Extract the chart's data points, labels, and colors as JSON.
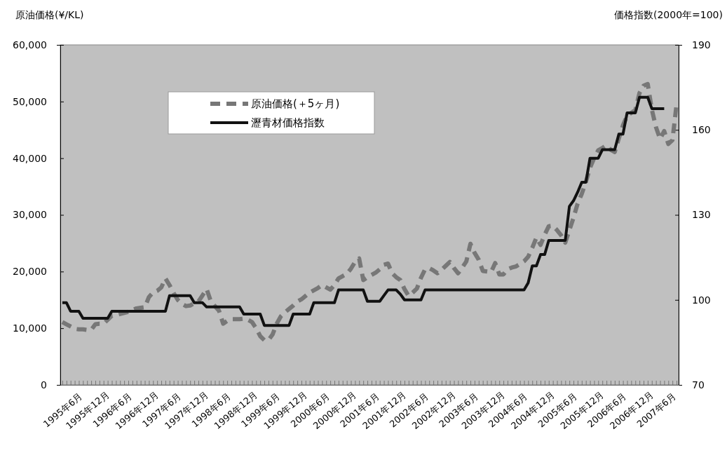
{
  "chart_data": {
    "type": "line",
    "ylabel": "原油価格(¥/KL)",
    "y2label": "価格指数(2000年=100)",
    "categories": [
      "1995年6月",
      null,
      null,
      null,
      null,
      null,
      "1995年12月",
      null,
      null,
      null,
      null,
      null,
      "1996年6月",
      null,
      null,
      null,
      null,
      null,
      "1996年12月",
      null,
      null,
      null,
      null,
      null,
      "1997年6月",
      null,
      null,
      null,
      null,
      null,
      "1997年12月",
      null,
      null,
      null,
      null,
      null,
      "1998年6月",
      null,
      null,
      null,
      null,
      null,
      "1998年12月",
      null,
      null,
      null,
      null,
      null,
      "1999年6月",
      null,
      null,
      null,
      null,
      null,
      "1999年12月",
      null,
      null,
      null,
      null,
      null,
      "2000年6月",
      null,
      null,
      null,
      null,
      null,
      "2000年12月",
      null,
      null,
      null,
      null,
      null,
      "2001年6月",
      null,
      null,
      null,
      null,
      null,
      "2001年12月",
      null,
      null,
      null,
      null,
      null,
      "2002年6月",
      null,
      null,
      null,
      null,
      null,
      "2002年12月",
      null,
      null,
      null,
      null,
      null,
      "2003年6月",
      null,
      null,
      null,
      null,
      null,
      "2003年12月",
      null,
      null,
      null,
      null,
      null,
      "2004年6月",
      null,
      null,
      null,
      null,
      null,
      "2004年12月",
      null,
      null,
      null,
      null,
      null,
      "2005年6月",
      null,
      null,
      null,
      null,
      null,
      "2005年12月",
      null,
      null,
      null,
      null,
      null,
      "2006年6月",
      null,
      null,
      null,
      null,
      null,
      "2006年12月",
      null,
      null,
      null,
      null,
      null,
      "2007年6月",
      null,
      null,
      null,
      null,
      null
    ],
    "series": [
      {
        "name": "原油価格(＋5ヶ月)",
        "color": "#777777",
        "line_style": "dashed",
        "values": [
          11100,
          10700,
          10300,
          9900,
          9800,
          9800,
          9700,
          9700,
          10700,
          10800,
          10800,
          11500,
          12200,
          12300,
          12500,
          12700,
          12900,
          13200,
          13500,
          13600,
          13700,
          15500,
          16300,
          16600,
          17200,
          18800,
          17600,
          16200,
          15000,
          14300,
          13900,
          14000,
          14400,
          14700,
          15800,
          16900,
          14800,
          13900,
          13100,
          10800,
          11300,
          11600,
          11600,
          11600,
          11700,
          11500,
          11100,
          10000,
          8600,
          7900,
          7900,
          8900,
          10800,
          12100,
          12800,
          13400,
          14000,
          14700,
          15100,
          15700,
          16300,
          16700,
          17100,
          17600,
          17200,
          16800,
          17600,
          18800,
          19200,
          19600,
          20500,
          21700,
          22300,
          18500,
          19000,
          19400,
          19800,
          20400,
          21200,
          21400,
          19700,
          19000,
          18500,
          16900,
          15700,
          16300,
          17000,
          18900,
          20400,
          20600,
          20200,
          19700,
          20300,
          21000,
          21700,
          20600,
          19700,
          20700,
          21800,
          24900,
          23300,
          22100,
          20100,
          20000,
          19900,
          21500,
          19500,
          19500,
          20400,
          20700,
          20900,
          21300,
          21800,
          22600,
          24200,
          26000,
          24700,
          26500,
          28000,
          28100,
          27300,
          26400,
          25100,
          27300,
          29500,
          32000,
          33700,
          35800,
          38300,
          40000,
          41400,
          41800,
          42300,
          41500,
          41100,
          43500,
          45800,
          47500,
          48000,
          48500,
          51500,
          52800,
          53100,
          48600,
          45500,
          43400,
          44800,
          42500,
          43200,
          49500
        ]
      },
      {
        "name": "瀝青材価格指数",
        "color": "#111111",
        "line_style": "solid",
        "axis": "y2",
        "values": [
          99,
          99,
          96,
          96,
          96,
          93.5,
          93.5,
          93.5,
          93.5,
          93.5,
          93.5,
          93.5,
          96,
          96,
          96,
          96,
          96,
          96,
          96,
          96,
          96,
          96,
          96,
          96,
          96,
          96,
          101.5,
          101.5,
          101.5,
          101.5,
          101.5,
          101.5,
          99,
          99,
          99,
          97.5,
          97.5,
          97.5,
          97.5,
          97.5,
          97.5,
          97.5,
          97.5,
          97.5,
          95,
          95,
          95,
          95,
          95,
          91,
          91,
          91,
          91,
          91,
          91,
          91,
          95,
          95,
          95,
          95,
          95,
          99,
          99,
          99,
          99,
          99,
          99,
          103.5,
          103.5,
          103.5,
          103.5,
          103.5,
          103.5,
          103.5,
          99.5,
          99.5,
          99.5,
          99.5,
          101.5,
          103.5,
          103.5,
          103.5,
          102,
          100,
          100,
          100,
          100,
          100,
          103.5,
          103.5,
          103.5,
          103.5,
          103.5,
          103.5,
          103.5,
          103.5,
          103.5,
          103.5,
          103.5,
          103.5,
          103.5,
          103.5,
          103.5,
          103.5,
          103.5,
          103.5,
          103.5,
          103.5,
          103.5,
          103.5,
          103.5,
          103.5,
          103.5,
          106,
          112,
          112,
          116,
          116,
          121,
          121,
          121,
          121,
          121,
          133,
          135,
          138,
          141.5,
          141.5,
          150,
          150,
          150,
          153,
          153,
          153,
          153,
          158.5,
          158.5,
          166,
          166,
          166,
          171.5,
          171.5,
          171.5,
          167.5,
          167.5,
          167.5,
          167.5,
          null,
          null,
          null
        ]
      }
    ],
    "ylim": [
      0,
      60000
    ],
    "yticks": [
      {
        "value": 0,
        "label": "0"
      },
      {
        "value": 10000,
        "label": "10,000"
      },
      {
        "value": 20000,
        "label": "20,000"
      },
      {
        "value": 30000,
        "label": "30,000"
      },
      {
        "value": 40000,
        "label": "40,000"
      },
      {
        "value": 50000,
        "label": "50,000"
      },
      {
        "value": 60000,
        "label": "60,000"
      }
    ],
    "y2lim": [
      70,
      190
    ],
    "y2ticks": [
      70,
      100,
      130,
      160,
      190
    ],
    "grid": false,
    "legend": "top",
    "marker": "none"
  }
}
